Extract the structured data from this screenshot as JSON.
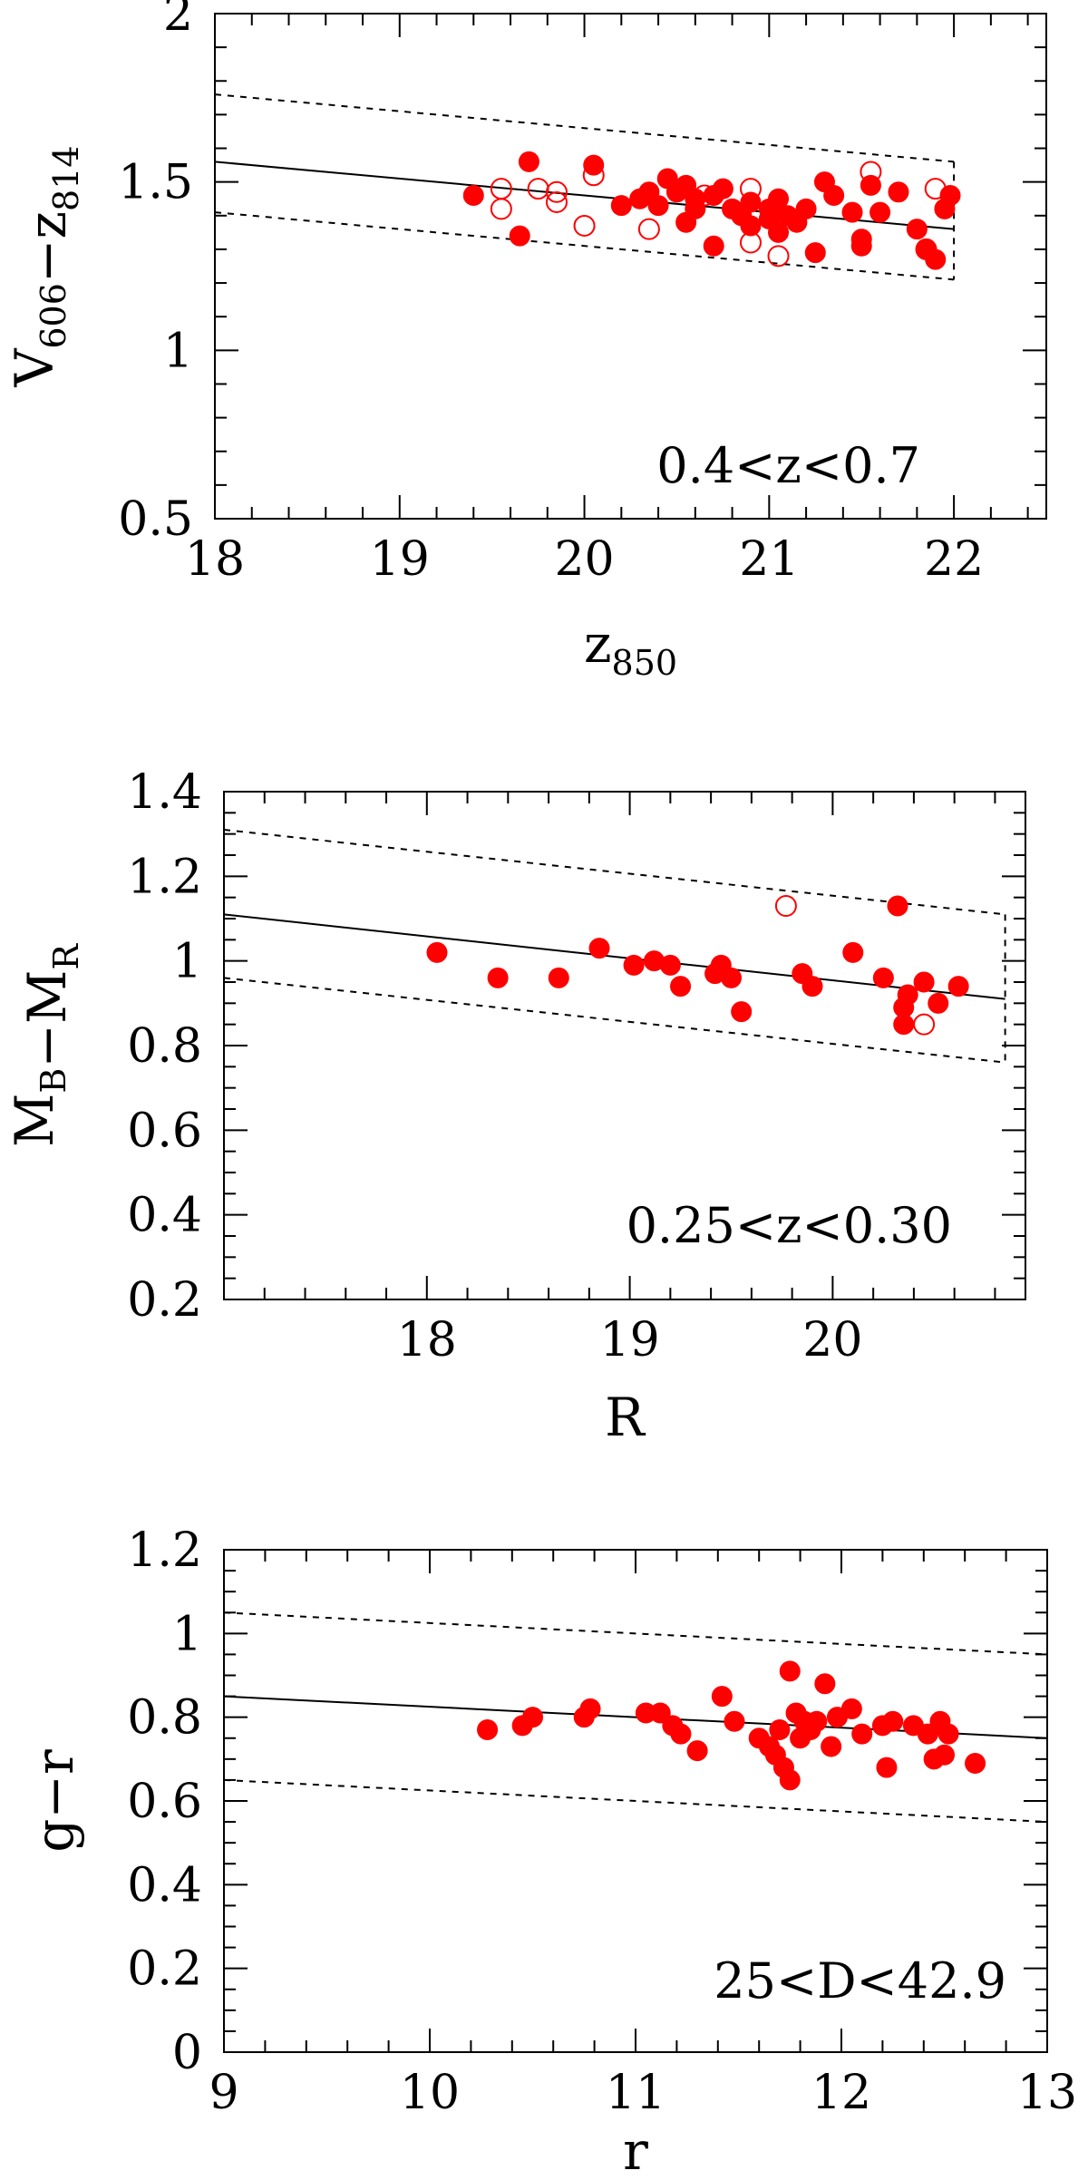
{
  "colors": {
    "points": "#ff0000",
    "lines": "#000000"
  },
  "chart_data": [
    {
      "type": "scatter",
      "title": "",
      "xlabel": {
        "main": "z",
        "sub": "850"
      },
      "ylabel": {
        "parts": [
          {
            "main": "V",
            "sub": "606"
          },
          {
            "main": "−z",
            "sub": "814"
          }
        ]
      },
      "xlim": [
        18,
        22.5
      ],
      "ylim": [
        0.5,
        2.0
      ],
      "xticks": [
        {
          "v": 18,
          "label": "18"
        },
        {
          "v": 19,
          "label": "19"
        },
        {
          "v": 20,
          "label": "20"
        },
        {
          "v": 21,
          "label": "21"
        },
        {
          "v": 22,
          "label": "22"
        }
      ],
      "yticks": [
        {
          "v": 0.5,
          "label": "0.5"
        },
        {
          "v": 1.0,
          "label": "1"
        },
        {
          "v": 1.5,
          "label": "1.5"
        },
        {
          "v": 2.0,
          "label": "2"
        }
      ],
      "xminor": 0.2,
      "yminor": 0.1,
      "annotation": "0.4<z<0.7",
      "fit_line": [
        [
          18,
          1.56
        ],
        [
          22,
          1.36
        ]
      ],
      "envelope": {
        "upper": [
          [
            18,
            1.76
          ],
          [
            22,
            1.56
          ]
        ],
        "lower": [
          [
            18,
            1.41
          ],
          [
            22,
            1.21
          ]
        ],
        "cutoff_x": 22
      },
      "series": [
        {
          "marker": "filled",
          "points": [
            [
              19.4,
              1.46
            ],
            [
              19.65,
              1.34
            ],
            [
              19.7,
              1.56
            ],
            [
              20.05,
              1.55
            ],
            [
              20.2,
              1.43
            ],
            [
              20.3,
              1.45
            ],
            [
              20.35,
              1.47
            ],
            [
              20.45,
              1.51
            ],
            [
              20.5,
              1.47
            ],
            [
              20.55,
              1.49
            ],
            [
              20.6,
              1.42
            ],
            [
              20.7,
              1.46
            ],
            [
              20.75,
              1.48
            ],
            [
              20.8,
              1.42
            ],
            [
              20.85,
              1.4
            ],
            [
              20.9,
              1.44
            ],
            [
              21.0,
              1.42
            ],
            [
              21.05,
              1.45
            ],
            [
              21.1,
              1.4
            ],
            [
              21.15,
              1.38
            ],
            [
              21.2,
              1.42
            ],
            [
              21.3,
              1.5
            ],
            [
              21.35,
              1.46
            ],
            [
              21.45,
              1.41
            ],
            [
              21.5,
              1.33
            ],
            [
              21.55,
              1.49
            ],
            [
              21.6,
              1.41
            ],
            [
              21.7,
              1.47
            ],
            [
              21.8,
              1.36
            ],
            [
              21.85,
              1.3
            ],
            [
              21.9,
              1.27
            ],
            [
              21.95,
              1.42
            ],
            [
              21.98,
              1.46
            ],
            [
              20.55,
              1.38
            ],
            [
              20.7,
              1.31
            ],
            [
              20.9,
              1.37
            ],
            [
              21.05,
              1.35
            ],
            [
              21.25,
              1.29
            ],
            [
              21.5,
              1.31
            ],
            [
              20.4,
              1.43
            ],
            [
              20.6,
              1.45
            ],
            [
              21.0,
              1.39
            ]
          ]
        },
        {
          "marker": "open",
          "points": [
            [
              19.55,
              1.48
            ],
            [
              19.55,
              1.42
            ],
            [
              19.75,
              1.48
            ],
            [
              19.85,
              1.47
            ],
            [
              19.85,
              1.44
            ],
            [
              20.0,
              1.37
            ],
            [
              20.05,
              1.52
            ],
            [
              20.35,
              1.36
            ],
            [
              20.65,
              1.46
            ],
            [
              20.9,
              1.48
            ],
            [
              20.9,
              1.32
            ],
            [
              21.05,
              1.28
            ],
            [
              21.55,
              1.53
            ],
            [
              21.9,
              1.48
            ],
            [
              21.85,
              1.3
            ]
          ]
        }
      ]
    },
    {
      "type": "scatter",
      "title": "",
      "xlabel": {
        "main": "R",
        "sub": ""
      },
      "ylabel": {
        "parts": [
          {
            "main": "M",
            "sub": "B"
          },
          {
            "main": "−M",
            "sub": "R"
          }
        ]
      },
      "xlim": [
        17.0,
        20.95
      ],
      "ylim": [
        0.2,
        1.4
      ],
      "xticks": [
        {
          "v": 18,
          "label": "18"
        },
        {
          "v": 19,
          "label": "19"
        },
        {
          "v": 20,
          "label": "20"
        }
      ],
      "yticks": [
        {
          "v": 0.2,
          "label": "0.2"
        },
        {
          "v": 0.4,
          "label": "0.4"
        },
        {
          "v": 0.6,
          "label": "0.6"
        },
        {
          "v": 0.8,
          "label": "0.8"
        },
        {
          "v": 1.0,
          "label": "1"
        },
        {
          "v": 1.2,
          "label": "1.2"
        },
        {
          "v": 1.4,
          "label": "1.4"
        }
      ],
      "xminor": 0.2,
      "yminor": 0.05,
      "annotation": "0.25<z<0.30",
      "fit_line": [
        [
          17.0,
          1.11
        ],
        [
          20.85,
          0.91
        ]
      ],
      "envelope": {
        "upper": [
          [
            17.0,
            1.31
          ],
          [
            20.85,
            1.11
          ]
        ],
        "lower": [
          [
            17.0,
            0.96
          ],
          [
            20.85,
            0.76
          ]
        ],
        "cutoff_x": 20.85
      },
      "series": [
        {
          "marker": "filled",
          "points": [
            [
              18.05,
              1.02
            ],
            [
              18.35,
              0.96
            ],
            [
              18.65,
              0.96
            ],
            [
              18.85,
              1.03
            ],
            [
              19.02,
              0.99
            ],
            [
              19.12,
              1.0
            ],
            [
              19.2,
              0.99
            ],
            [
              19.25,
              0.94
            ],
            [
              19.42,
              0.97
            ],
            [
              19.45,
              0.99
            ],
            [
              19.5,
              0.96
            ],
            [
              19.55,
              0.88
            ],
            [
              19.85,
              0.97
            ],
            [
              19.9,
              0.94
            ],
            [
              20.1,
              1.02
            ],
            [
              20.25,
              0.96
            ],
            [
              20.32,
              1.13
            ],
            [
              20.35,
              0.89
            ],
            [
              20.37,
              0.92
            ],
            [
              20.35,
              0.85
            ],
            [
              20.45,
              0.95
            ],
            [
              20.52,
              0.9
            ],
            [
              20.62,
              0.94
            ]
          ]
        },
        {
          "marker": "open",
          "points": [
            [
              19.77,
              1.13
            ],
            [
              20.45,
              0.85
            ]
          ]
        }
      ]
    },
    {
      "type": "scatter",
      "title": "",
      "xlabel": {
        "main": "r",
        "sub": ""
      },
      "ylabel": {
        "parts": [
          {
            "main": "g−r",
            "sub": ""
          }
        ]
      },
      "xlim": [
        9,
        13
      ],
      "ylim": [
        0,
        1.2
      ],
      "xticks": [
        {
          "v": 9,
          "label": "9"
        },
        {
          "v": 10,
          "label": "10"
        },
        {
          "v": 11,
          "label": "11"
        },
        {
          "v": 12,
          "label": "12"
        },
        {
          "v": 13,
          "label": "13"
        }
      ],
      "yticks": [
        {
          "v": 0,
          "label": "0"
        },
        {
          "v": 0.2,
          "label": "0.2"
        },
        {
          "v": 0.4,
          "label": "0.4"
        },
        {
          "v": 0.6,
          "label": "0.6"
        },
        {
          "v": 0.8,
          "label": "0.8"
        },
        {
          "v": 1.0,
          "label": "1"
        },
        {
          "v": 1.2,
          "label": "1.2"
        }
      ],
      "xminor": 0.2,
      "yminor": 0.05,
      "annotation": "25<D<42.9",
      "fit_line": [
        [
          9,
          0.85
        ],
        [
          13,
          0.75
        ]
      ],
      "envelope": {
        "upper": [
          [
            9,
            1.05
          ],
          [
            13,
            0.95
          ]
        ],
        "lower": [
          [
            9,
            0.65
          ],
          [
            13,
            0.55
          ]
        ],
        "cutoff_x": null
      },
      "series": [
        {
          "marker": "filled",
          "points": [
            [
              10.28,
              0.77
            ],
            [
              10.45,
              0.78
            ],
            [
              10.5,
              0.8
            ],
            [
              10.75,
              0.8
            ],
            [
              10.78,
              0.82
            ],
            [
              11.05,
              0.81
            ],
            [
              11.12,
              0.81
            ],
            [
              11.18,
              0.78
            ],
            [
              11.22,
              0.76
            ],
            [
              11.3,
              0.72
            ],
            [
              11.42,
              0.85
            ],
            [
              11.48,
              0.79
            ],
            [
              11.6,
              0.75
            ],
            [
              11.65,
              0.73
            ],
            [
              11.68,
              0.71
            ],
            [
              11.7,
              0.77
            ],
            [
              11.72,
              0.68
            ],
            [
              11.75,
              0.65
            ],
            [
              11.75,
              0.91
            ],
            [
              11.78,
              0.81
            ],
            [
              11.8,
              0.75
            ],
            [
              11.82,
              0.79
            ],
            [
              11.85,
              0.77
            ],
            [
              11.88,
              0.79
            ],
            [
              11.92,
              0.88
            ],
            [
              11.95,
              0.73
            ],
            [
              11.98,
              0.8
            ],
            [
              12.05,
              0.82
            ],
            [
              12.1,
              0.76
            ],
            [
              12.2,
              0.78
            ],
            [
              12.22,
              0.68
            ],
            [
              12.25,
              0.79
            ],
            [
              12.35,
              0.78
            ],
            [
              12.42,
              0.76
            ],
            [
              12.45,
              0.7
            ],
            [
              12.48,
              0.79
            ],
            [
              12.5,
              0.71
            ],
            [
              12.52,
              0.76
            ],
            [
              12.65,
              0.69
            ]
          ]
        }
      ]
    }
  ]
}
